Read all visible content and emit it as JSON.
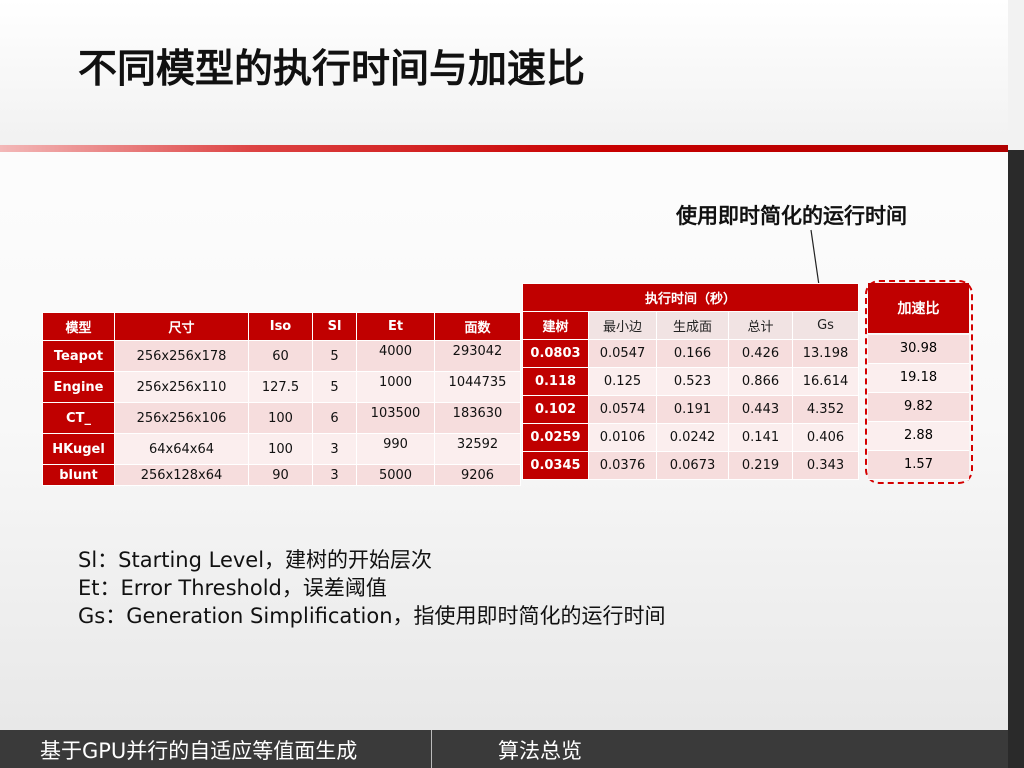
{
  "title": "不同模型的执行时间与加速比",
  "annotation": "使用即时简化的运行时间",
  "left_table": {
    "headers": [
      "模型",
      "尺寸",
      "Iso",
      "Sl",
      "Et",
      "面数"
    ],
    "rows": [
      [
        "Teapot",
        "256x256x178",
        "60",
        "5",
        "4000",
        "293042"
      ],
      [
        "Engine",
        "256x256x110",
        "127.5",
        "5",
        "1000",
        "1044735"
      ],
      [
        "CT_",
        "256x256x106",
        "100",
        "6",
        "103500",
        "183630"
      ],
      [
        "HKugel",
        "64x64x64",
        "100",
        "3",
        "990",
        "32592"
      ],
      [
        "blunt",
        "256x128x64",
        "90",
        "3",
        "5000",
        "9206"
      ]
    ]
  },
  "right_table": {
    "group_header": "执行时间（秒）",
    "headers": [
      "建树",
      "最小边",
      "生成面",
      "总计",
      "Gs"
    ],
    "rows": [
      [
        "0.0803",
        "0.0547",
        "0.166",
        "0.426",
        "13.198"
      ],
      [
        "0.118",
        "0.125",
        "0.523",
        "0.866",
        "16.614"
      ],
      [
        "0.102",
        "0.0574",
        "0.191",
        "0.443",
        "4.352"
      ],
      [
        "0.0259",
        "0.0106",
        "0.0242",
        "0.141",
        "0.406"
      ],
      [
        "0.0345",
        "0.0376",
        "0.0673",
        "0.219",
        "0.343"
      ]
    ]
  },
  "speedup": {
    "header": "加速比",
    "values": [
      "30.98",
      "19.18",
      "9.82",
      "2.88",
      "1.57"
    ]
  },
  "notes": [
    "Sl：Starting Level，建树的开始层次",
    "Et：Error Threshold，误差阈值",
    "Gs：Generation Simplification，指使用即时简化的运行时间"
  ],
  "footer": {
    "left": "基于GPU并行的自适应等值面生成",
    "right": "算法总览"
  },
  "colors": {
    "accent": "#c00000",
    "cell_dark": "#f6dddd",
    "cell_light": "#fbeeee",
    "footer_bg": "#3a3a3a"
  }
}
